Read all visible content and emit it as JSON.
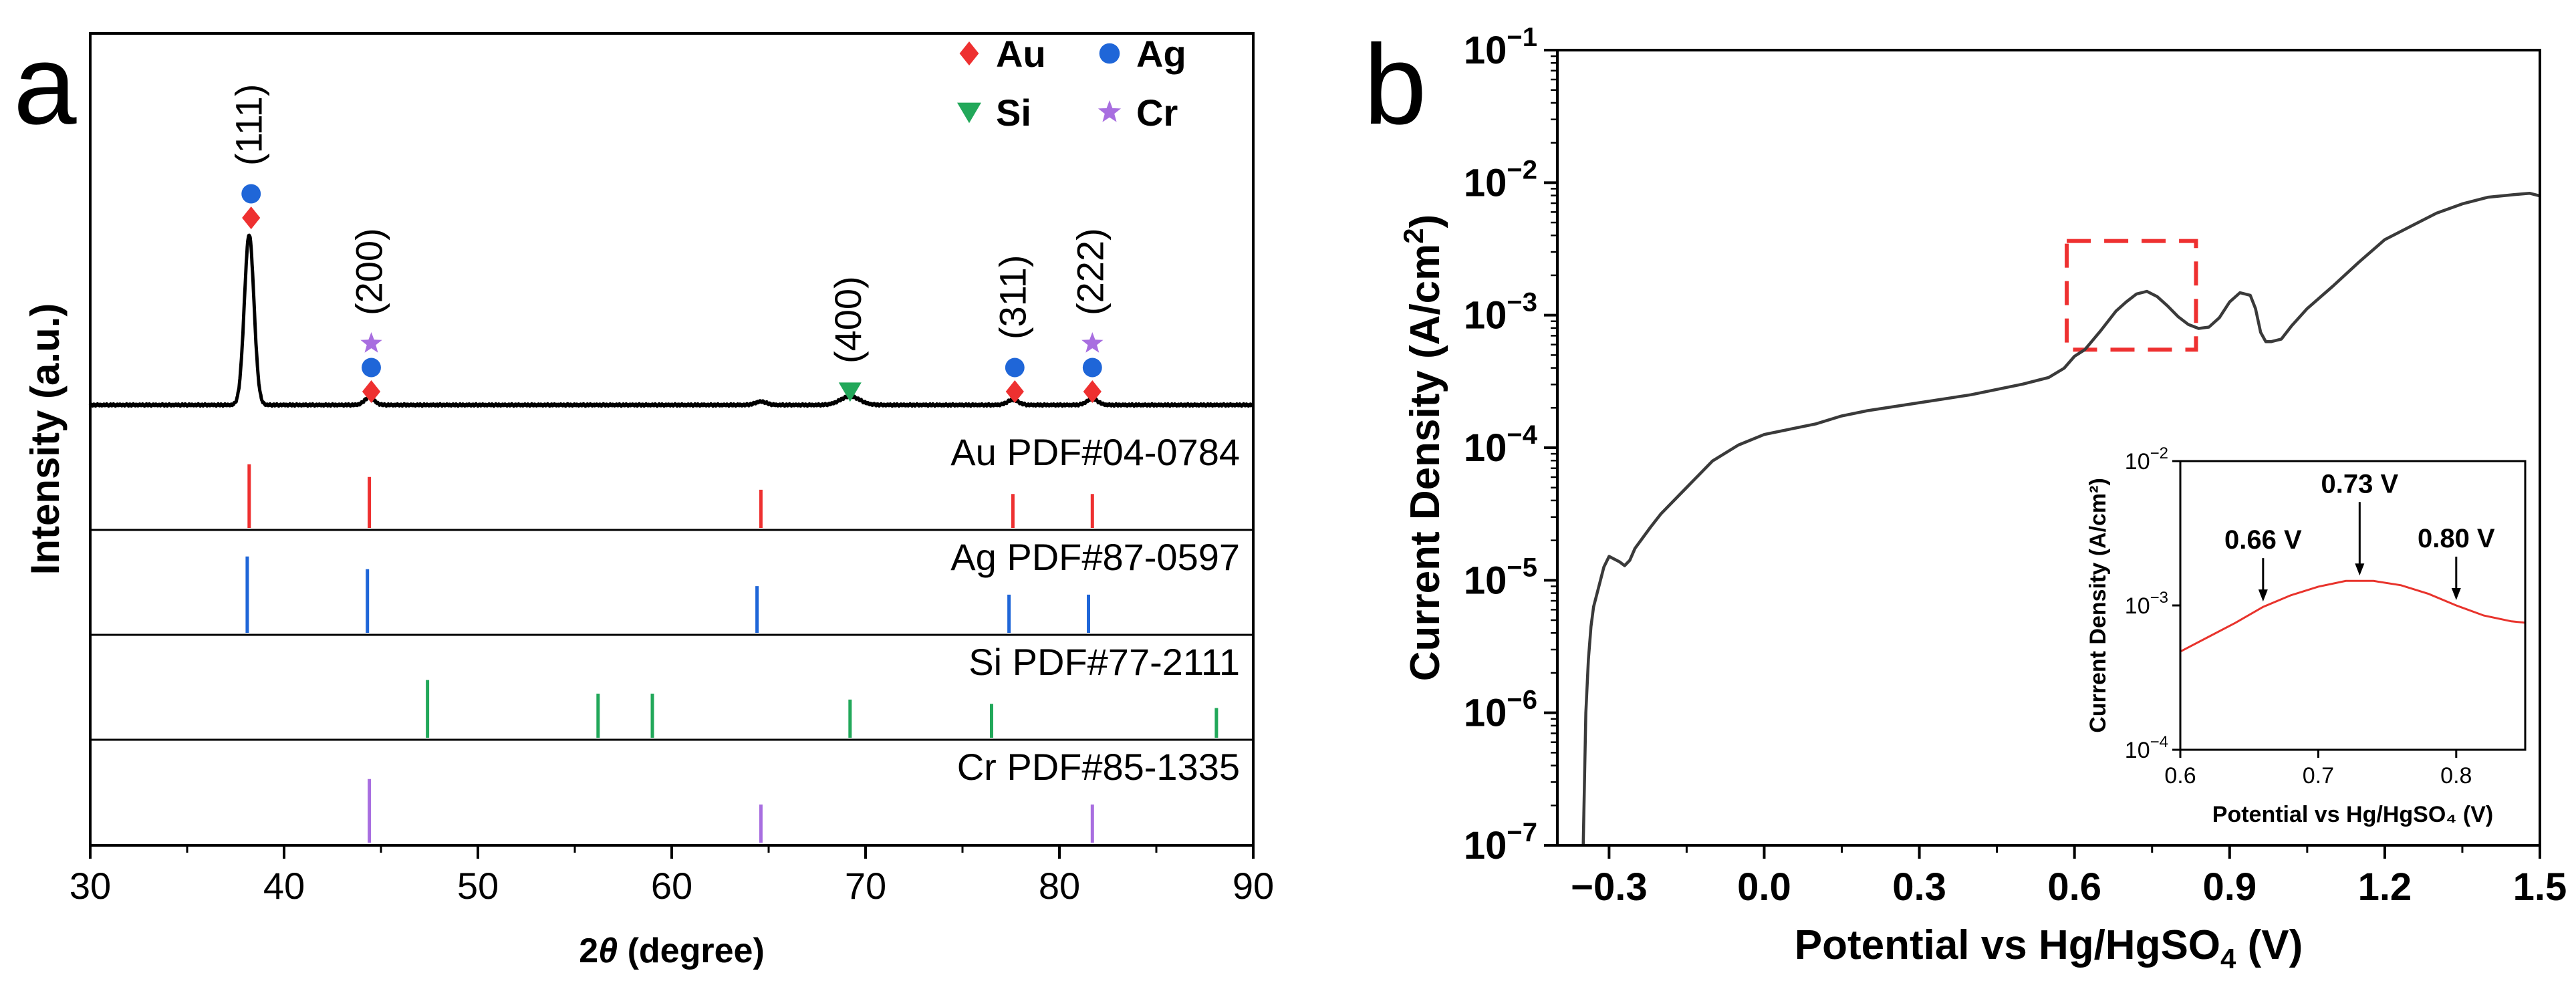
{
  "figure": {
    "panel_a_label": "a",
    "panel_b_label": "b"
  },
  "colors": {
    "au": "#ee3030",
    "ag": "#1f66d8",
    "si": "#22a85a",
    "cr": "#a86ee0",
    "trace": "#000000",
    "curve": "#3a3a3a",
    "inset_curve": "#e8332c",
    "box": "#ee3030"
  },
  "chart_data": [
    {
      "id": "xrd",
      "type": "line",
      "xlabel_prefix": "2",
      "xlabel_theta": "θ",
      "xlabel_suffix": " (degree)",
      "ylabel": "Intensity (a.u.)",
      "xlim": [
        30,
        90
      ],
      "xticks": [
        30,
        40,
        50,
        60,
        70,
        80,
        90
      ],
      "legend": [
        {
          "symbol": "diamond",
          "label": "Au",
          "color_key": "au"
        },
        {
          "symbol": "circle",
          "label": "Ag",
          "color_key": "ag"
        },
        {
          "symbol": "triangle",
          "label": "Si",
          "color_key": "si"
        },
        {
          "symbol": "star",
          "label": "Cr",
          "color_key": "cr"
        }
      ],
      "pattern_peaks": [
        {
          "x": 38.2,
          "h": 1.0,
          "w": 0.35
        },
        {
          "x": 44.4,
          "h": 0.045,
          "w": 0.35
        },
        {
          "x": 64.6,
          "h": 0.02,
          "w": 0.4
        },
        {
          "x": 69.2,
          "h": 0.05,
          "w": 0.7
        },
        {
          "x": 77.6,
          "h": 0.03,
          "w": 0.4
        },
        {
          "x": 81.7,
          "h": 0.035,
          "w": 0.4
        }
      ],
      "peak_labels": [
        {
          "x": 38.3,
          "label": "(111)",
          "markers": [
            "ag",
            "au"
          ]
        },
        {
          "x": 44.5,
          "label": "(200)",
          "markers": [
            "cr",
            "ag",
            "au"
          ]
        },
        {
          "x": 69.2,
          "label": "(400)",
          "markers": [
            "si"
          ]
        },
        {
          "x": 77.7,
          "label": "(311)",
          "markers": [
            "ag",
            "au"
          ]
        },
        {
          "x": 81.7,
          "label": "(222)",
          "markers": [
            "cr",
            "ag",
            "au"
          ]
        }
      ],
      "references": [
        {
          "label": "Au PDF#04-0784",
          "color_key": "au",
          "lines": [
            {
              "x": 38.2,
              "h": 0.75
            },
            {
              "x": 44.4,
              "h": 0.6
            },
            {
              "x": 64.6,
              "h": 0.45
            },
            {
              "x": 77.6,
              "h": 0.4
            },
            {
              "x": 81.7,
              "h": 0.4
            }
          ]
        },
        {
          "label": "Ag PDF#87-0597",
          "color_key": "ag",
          "lines": [
            {
              "x": 38.1,
              "h": 0.9
            },
            {
              "x": 44.3,
              "h": 0.75
            },
            {
              "x": 64.4,
              "h": 0.55
            },
            {
              "x": 77.4,
              "h": 0.45
            },
            {
              "x": 81.5,
              "h": 0.45
            }
          ]
        },
        {
          "label": "Si PDF#77-2111",
          "color_key": "si",
          "lines": [
            {
              "x": 47.4,
              "h": 0.68
            },
            {
              "x": 56.2,
              "h": 0.52
            },
            {
              "x": 59.0,
              "h": 0.52
            },
            {
              "x": 69.2,
              "h": 0.45
            },
            {
              "x": 76.5,
              "h": 0.4
            },
            {
              "x": 88.1,
              "h": 0.35
            }
          ]
        },
        {
          "label": "Cr PDF#85-1335",
          "color_key": "cr",
          "lines": [
            {
              "x": 44.4,
              "h": 0.75
            },
            {
              "x": 64.6,
              "h": 0.45
            },
            {
              "x": 81.7,
              "h": 0.45
            }
          ]
        }
      ]
    },
    {
      "id": "polarization",
      "type": "line",
      "xlabel_base": "Potential vs Hg/HgSO",
      "xlabel_sub": "4",
      "xlabel_end": " (V)",
      "ylabel_base": "Current Density (A/cm",
      "ylabel_sup": "2",
      "ylabel_end": ")",
      "xlim": [
        -0.4,
        1.5
      ],
      "xticks": [
        -0.3,
        0.0,
        0.3,
        0.6,
        0.9,
        1.2,
        1.5
      ],
      "xtick_labels": [
        "−0.3",
        "0.0",
        "0.3",
        "0.6",
        "0.9",
        "1.2",
        "1.5"
      ],
      "ylog_range": [
        -7,
        -1
      ],
      "ytick_exponents": [
        -7,
        -6,
        -5,
        -4,
        -3,
        -2,
        -1
      ],
      "ytick_exponent_labels": [
        "−7",
        "−6",
        "−5",
        "−4",
        "−3",
        "−2",
        "−1"
      ],
      "ytick_base": "10",
      "highlight_region": {
        "x": [
          0.585,
          0.835
        ],
        "y_log": [
          -3.26,
          -2.44
        ]
      },
      "series": [
        {
          "name": "polarization curve",
          "x": [
            -0.35,
            -0.345,
            -0.34,
            -0.335,
            -0.33,
            -0.32,
            -0.31,
            -0.3,
            -0.29,
            -0.28,
            -0.27,
            -0.26,
            -0.25,
            -0.22,
            -0.2,
            -0.15,
            -0.1,
            -0.05,
            0.0,
            0.05,
            0.1,
            0.15,
            0.2,
            0.3,
            0.4,
            0.5,
            0.55,
            0.58,
            0.6,
            0.62,
            0.65,
            0.68,
            0.7,
            0.72,
            0.74,
            0.76,
            0.78,
            0.8,
            0.82,
            0.84,
            0.86,
            0.88,
            0.9,
            0.92,
            0.94,
            0.95,
            0.96,
            0.97,
            0.98,
            1.0,
            1.02,
            1.05,
            1.1,
            1.15,
            1.2,
            1.25,
            1.3,
            1.35,
            1.4,
            1.45,
            1.48,
            1.5
          ],
          "y_log": [
            -7.0,
            -6.0,
            -5.6,
            -5.35,
            -5.2,
            -5.05,
            -4.9,
            -4.82,
            -4.84,
            -4.86,
            -4.89,
            -4.85,
            -4.76,
            -4.6,
            -4.5,
            -4.3,
            -4.1,
            -3.98,
            -3.9,
            -3.86,
            -3.82,
            -3.76,
            -3.72,
            -3.66,
            -3.6,
            -3.52,
            -3.47,
            -3.4,
            -3.31,
            -3.26,
            -3.12,
            -2.97,
            -2.9,
            -2.84,
            -2.82,
            -2.86,
            -2.93,
            -3.01,
            -3.07,
            -3.1,
            -3.09,
            -3.02,
            -2.9,
            -2.83,
            -2.85,
            -2.95,
            -3.13,
            -3.2,
            -3.2,
            -3.18,
            -3.08,
            -2.95,
            -2.78,
            -2.6,
            -2.43,
            -2.33,
            -2.23,
            -2.16,
            -2.11,
            -2.09,
            -2.08,
            -2.1
          ]
        }
      ]
    },
    {
      "id": "inset",
      "type": "line",
      "xlabel": "Potential vs Hg/HgSO₄ (V)",
      "ylabel": "Current Density (A/cm²)",
      "xlim": [
        0.6,
        0.85
      ],
      "xticks": [
        0.6,
        0.7,
        0.8
      ],
      "xtick_labels": [
        "0.6",
        "0.7",
        "0.8"
      ],
      "ylog_range": [
        -4,
        -2
      ],
      "ytick_exponents": [
        -4,
        -3,
        -2
      ],
      "ytick_exponent_labels": [
        "−4",
        "−3",
        "−2"
      ],
      "ytick_base": "10",
      "annotations": [
        {
          "x": 0.66,
          "label": "0.66 V"
        },
        {
          "x": 0.73,
          "label": "0.73 V"
        },
        {
          "x": 0.8,
          "label": "0.80 V"
        }
      ],
      "series": [
        {
          "name": "inset curve",
          "x": [
            0.6,
            0.62,
            0.64,
            0.66,
            0.68,
            0.7,
            0.72,
            0.74,
            0.76,
            0.78,
            0.8,
            0.82,
            0.84,
            0.85
          ],
          "y_log": [
            -3.32,
            -3.22,
            -3.12,
            -3.01,
            -2.93,
            -2.87,
            -2.83,
            -2.83,
            -2.86,
            -2.92,
            -3.0,
            -3.07,
            -3.11,
            -3.12
          ]
        }
      ]
    }
  ]
}
